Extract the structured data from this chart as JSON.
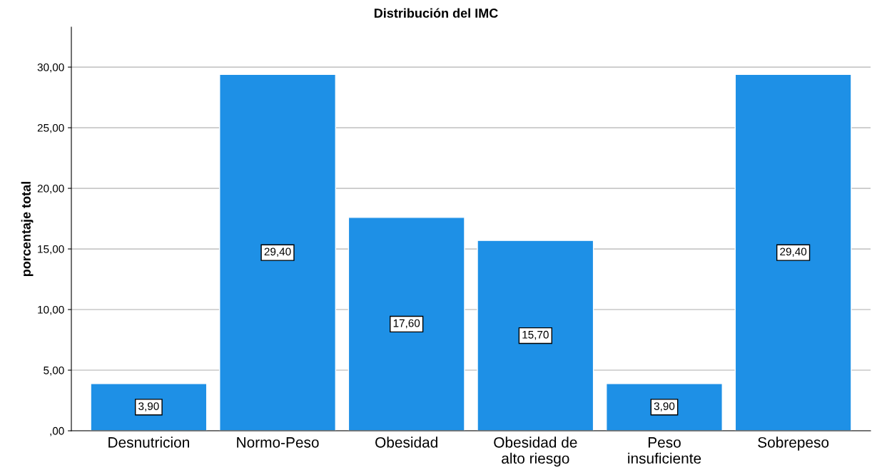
{
  "chart_data": {
    "type": "bar",
    "title": "Distribución del IMC",
    "ylabel": "porcentaje total",
    "categories": [
      "Desnutricion",
      "Normo-Peso",
      "Obesidad",
      "Obesidad de\nalto riesgo",
      "Peso\ninsuficiente",
      "Sobrepeso"
    ],
    "values": [
      3.9,
      29.4,
      17.6,
      15.7,
      3.9,
      29.4
    ],
    "value_labels": [
      "3,90",
      "29,40",
      "17,60",
      "15,70",
      "3,90",
      "29,40"
    ],
    "color": "#1e90e6",
    "ylim": [
      0,
      33.3
    ],
    "yticks": [
      {
        "value": 0,
        "label": ",00"
      },
      {
        "value": 5,
        "label": "5,00"
      },
      {
        "value": 10,
        "label": "10,00"
      },
      {
        "value": 15,
        "label": "15,00"
      },
      {
        "value": 20,
        "label": "20,00"
      },
      {
        "value": 25,
        "label": "25,00"
      },
      {
        "value": 30,
        "label": "30,00"
      }
    ],
    "grid": "y"
  }
}
